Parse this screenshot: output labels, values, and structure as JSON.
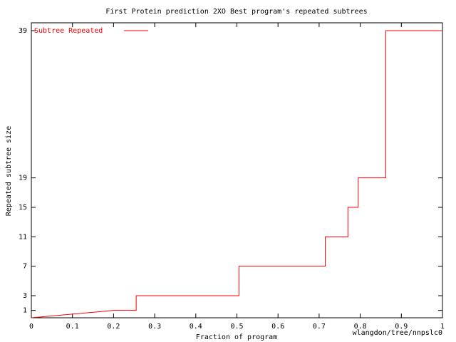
{
  "chart_data": {
    "type": "line",
    "title": "First Protein prediction 2XO Best program's repeated subtrees",
    "xlabel": "Fraction of program",
    "ylabel": "Repeated subtree size",
    "annotation": "wlangdon/tree/nnpslc0",
    "x": [
      0,
      0.2,
      0.255,
      0.255,
      0.505,
      0.505,
      0.715,
      0.715,
      0.77,
      0.77,
      0.795,
      0.795,
      0.862,
      0.862,
      1
    ],
    "series": [
      {
        "name": "Subtree Repeated",
        "color": "#ff0000",
        "values": [
          0,
          1,
          1,
          3,
          3,
          7,
          7,
          11,
          11,
          15,
          15,
          19,
          19,
          39,
          39
        ]
      }
    ],
    "xlim": [
      0,
      1
    ],
    "xticks": [
      0,
      0.1,
      0.2,
      0.3,
      0.4,
      0.5,
      0.6,
      0.7,
      0.8,
      0.9,
      1
    ],
    "ylim": [
      0,
      39
    ],
    "yticks": [
      1,
      3,
      7,
      11,
      15,
      19,
      39
    ],
    "legend": "top-left"
  }
}
